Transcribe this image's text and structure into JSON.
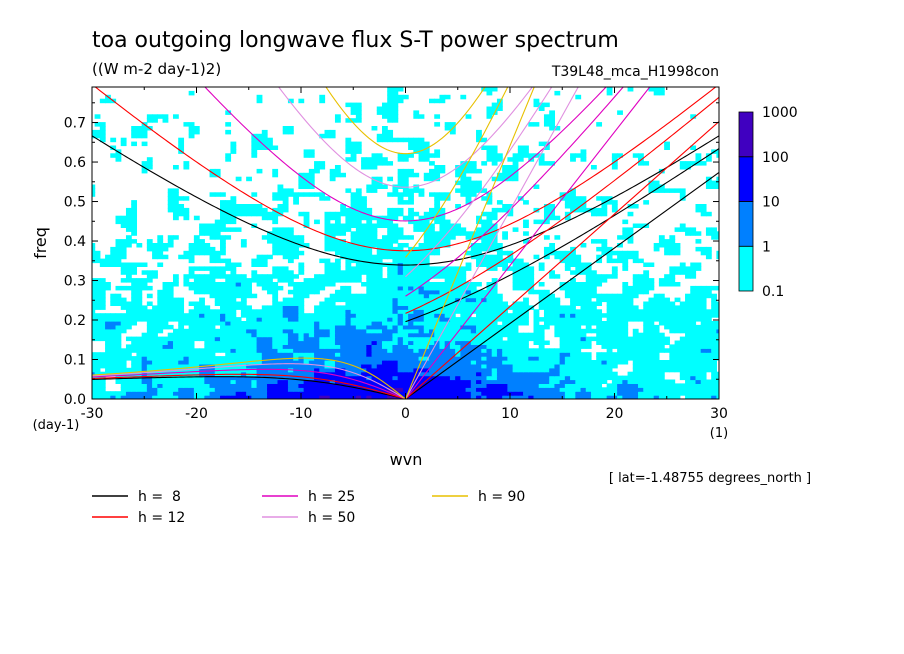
{
  "chart_data": {
    "type": "heatmap",
    "title": "toa outgoing longwave flux S-T power spectrum",
    "subtitle": "((W m-2 day-1)2)",
    "run_label": "T39L48_mca_H1998con",
    "xlabel": "wvn",
    "ylabel": "freq",
    "x_unit": "(1)",
    "y_unit": "(day-1)",
    "xlim": [
      -30,
      30
    ],
    "ylim": [
      0,
      0.79
    ],
    "x_ticks": [
      "-30",
      "-20",
      "-10",
      "0",
      "10",
      "20",
      "30"
    ],
    "y_ticks": [
      "0.0",
      "0.1",
      "0.2",
      "0.3",
      "0.4",
      "0.5",
      "0.6",
      "0.7"
    ],
    "colorbar": {
      "levels": [
        "0.1",
        "1",
        "10",
        "100",
        "1000"
      ],
      "colors": [
        "#00ffff",
        "#0080ff",
        "#0000ff",
        "#4000c0"
      ]
    },
    "annotation": "[ lat=-1.48755 degrees_north ]",
    "dispersion_curves": [
      {
        "label": "h =  8",
        "equivalent_depth_m": 8,
        "color": "#000000"
      },
      {
        "label": "h = 12",
        "equivalent_depth_m": 12,
        "color": "#ff0000"
      },
      {
        "label": "h = 25",
        "equivalent_depth_m": 25,
        "color": "#e000c0"
      },
      {
        "label": "h = 50",
        "equivalent_depth_m": 50,
        "color": "#e090e0"
      },
      {
        "label": "h = 90",
        "equivalent_depth_m": 90,
        "color": "#e8c000"
      }
    ]
  }
}
